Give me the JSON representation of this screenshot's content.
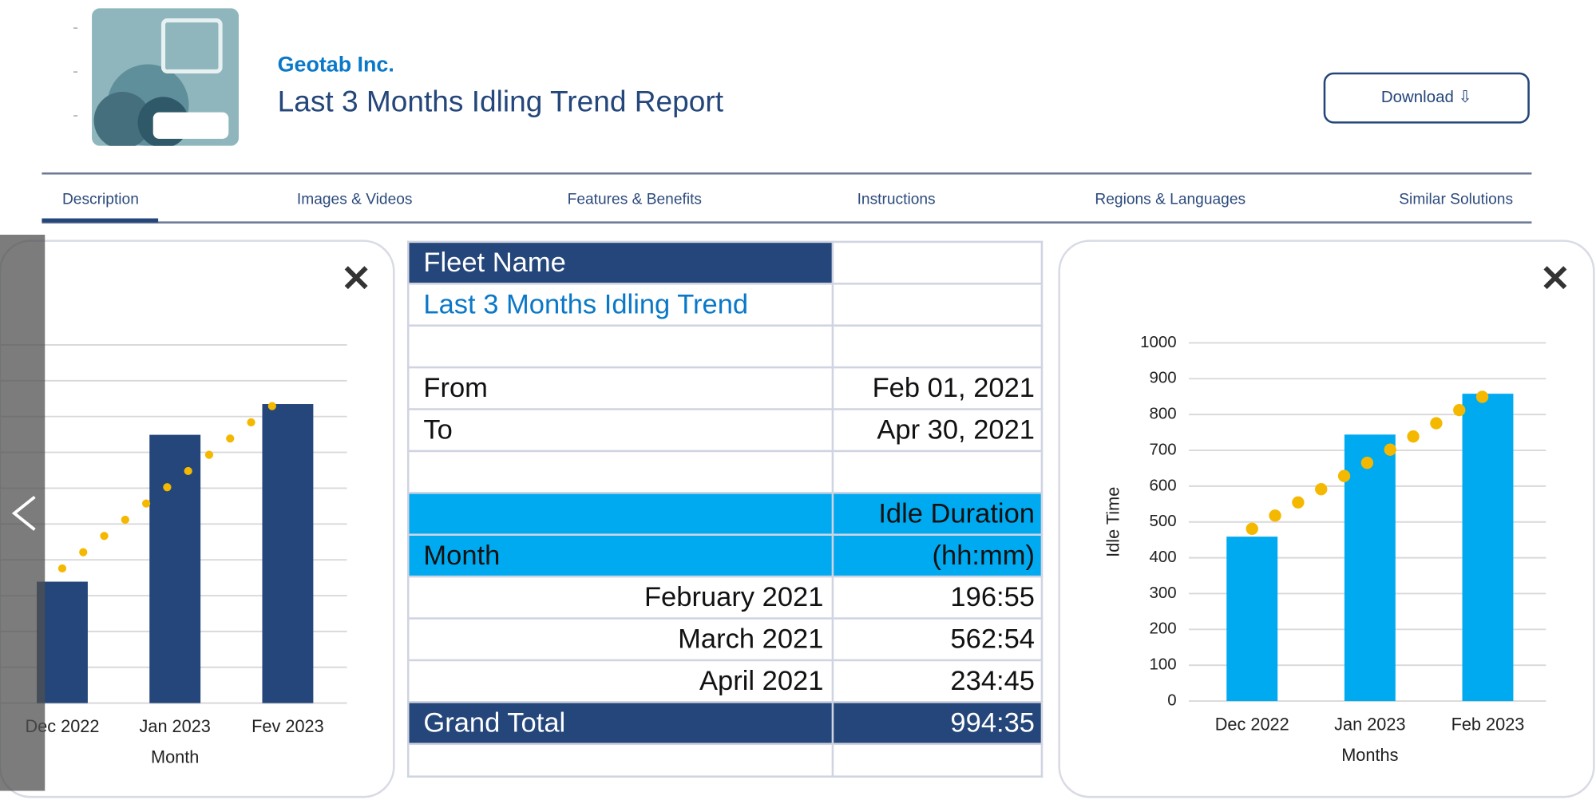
{
  "header": {
    "company": "Geotab Inc.",
    "title": "Last 3 Months Idling Trend Report",
    "download": "Download"
  },
  "tabs": [
    "Description",
    "Images & Videos",
    "Features & Benefits",
    "Instructions",
    "Regions & Languages",
    "Similar Solutions"
  ],
  "table": {
    "fleet_label": "Fleet Name",
    "report_name": "Last 3 Months Idling Trend",
    "from_label": "From",
    "from": "Feb 01, 2021",
    "to_label": "To",
    "to": "Apr 30, 2021",
    "duration_header": [
      "Idle Duration",
      "(hh:mm)"
    ],
    "month_header": "Month",
    "rows": [
      [
        "February 2021",
        "196:55"
      ],
      [
        "March 2021",
        "562:54"
      ],
      [
        "April 2021",
        "234:45"
      ]
    ],
    "total": [
      "Grand Total",
      "994:35"
    ]
  },
  "chart_data": [
    {
      "type": "bar",
      "x_label": "Month",
      "categories": [
        "Dec 2022",
        "Jan 2023",
        "Fev 2023"
      ],
      "values": [
        339,
        749,
        835
      ],
      "color": "#24467a",
      "trendline": {
        "color": "#f5b800",
        "start": 376,
        "end": 863
      },
      "ylim": [
        0,
        1000
      ],
      "yticks": [
        0,
        100,
        200,
        300,
        400,
        500,
        600,
        700,
        800,
        900,
        1000
      ],
      "grid": true,
      "tick_labels": false
    },
    {
      "type": "bar",
      "x_label": "Months",
      "y_label": "Idle Time",
      "categories": [
        "Dec 2022",
        "Jan 2023",
        "Feb 2023"
      ],
      "values": [
        459,
        744,
        858
      ],
      "color": "#00aaf0",
      "trendline": {
        "color": "#f5b800",
        "start": 481,
        "end": 858
      },
      "ylim": [
        0,
        1000
      ],
      "yticks": [
        0,
        100,
        200,
        300,
        400,
        500,
        600,
        700,
        800,
        900,
        1000
      ],
      "grid": true,
      "tick_labels": true
    }
  ]
}
